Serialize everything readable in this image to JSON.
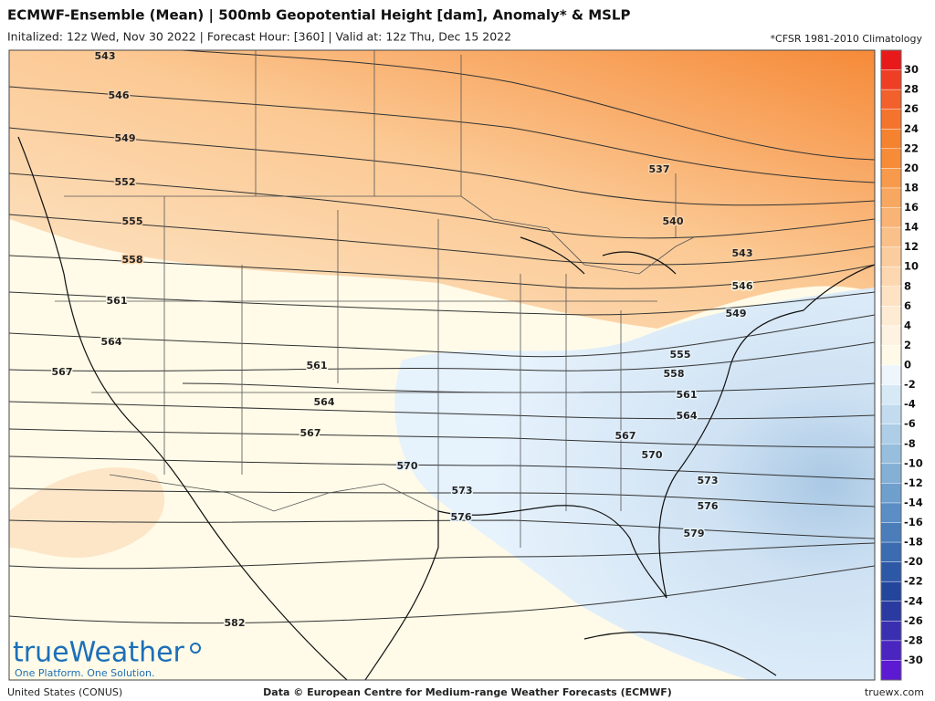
{
  "header": {
    "title": "ECMWF-Ensemble (Mean) | 500mb Geopotential Height [dam], Anomaly* & MSLP",
    "subtitle": "Initalized: 12z Wed, Nov 30 2022 | Forecast Hour: [360] | Valid at: 12z Thu, Dec 15 2022",
    "note": "*CFSR 1981-2010 Climatology"
  },
  "map": {
    "contour_labels": [
      543,
      546,
      549,
      552,
      555,
      558,
      561,
      564,
      567,
      561,
      564,
      567,
      570,
      573,
      576,
      582,
      537,
      540,
      543,
      546,
      549,
      555,
      558,
      561,
      564,
      567,
      570,
      573,
      576,
      579
    ]
  },
  "colorbar": {
    "ticks": [
      30,
      28,
      26,
      24,
      22,
      20,
      18,
      16,
      14,
      12,
      10,
      8,
      6,
      4,
      2,
      0,
      -2,
      -4,
      -6,
      -8,
      -10,
      -12,
      -14,
      -16,
      -18,
      -20,
      -22,
      -24,
      -26,
      -28,
      -30
    ],
    "colors": [
      "#e8191b",
      "#ee3f25",
      "#f2612b",
      "#f4742e",
      "#f5822f",
      "#f68c38",
      "#f79a4c",
      "#f8a760",
      "#f9b375",
      "#fac089",
      "#fbcc9d",
      "#fcd7b0",
      "#fde2c3",
      "#fdebd3",
      "#fef3e2",
      "#fffae8",
      "#eef6fc",
      "#d8e9f6",
      "#c3dbee",
      "#aecde6",
      "#98bedd",
      "#84b0d5",
      "#6f9fcd",
      "#5a8ec5",
      "#4a7dba",
      "#3b6bb0",
      "#2d58a6",
      "#24459c",
      "#2a3aa0",
      "#3a2fb0",
      "#4a25c0",
      "#5c1ad2"
    ]
  },
  "logo": {
    "name": "trueWeather",
    "tagline": "One Platform. One Solution."
  },
  "footer": {
    "region": "United States (CONUS)",
    "credit": "Data © European Centre for Medium-range Weather Forecasts (ECMWF)",
    "site": "truewx.com"
  }
}
